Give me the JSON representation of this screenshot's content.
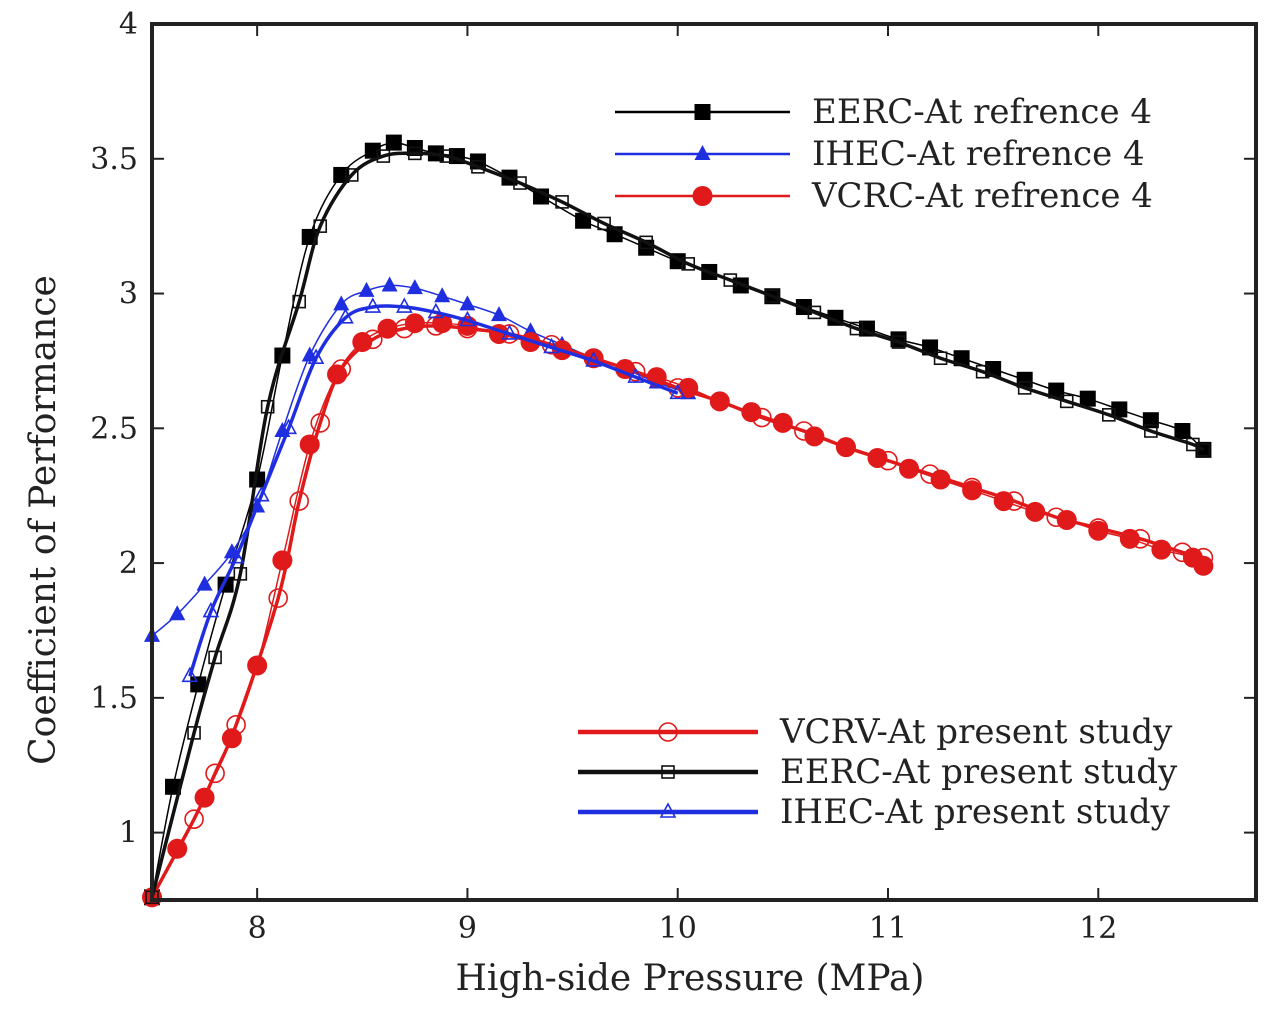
{
  "chart_data": {
    "type": "line",
    "xlabel": "High-side Pressure (MPa)",
    "ylabel": "Coefficient of Performance",
    "xlim": [
      7.5,
      12.75
    ],
    "ylim": [
      0.75,
      4
    ],
    "xticks": [
      "8",
      "9",
      "10",
      "11",
      "12"
    ],
    "yticks": [
      "1",
      "1.5",
      "2",
      "2.5",
      "3",
      "3.5",
      "4"
    ],
    "legend_top": {
      "placement": "top-right",
      "entries": [
        "EERC-At refrence 4",
        "IHEC-At refrence 4",
        "VCRC-At refrence 4"
      ]
    },
    "legend_bottom": {
      "placement": "bottom-right",
      "entries": [
        "VCRV-At present study",
        "EERC-At present study",
        "IHEC-At present study"
      ]
    },
    "series": [
      {
        "name": "EERC-At refrence 4",
        "color": "#000000",
        "marker": "square-filled",
        "x": [
          7.5,
          7.6,
          7.72,
          7.85,
          8.0,
          8.12,
          8.25,
          8.4,
          8.55,
          8.65,
          8.75,
          8.85,
          8.95,
          9.05,
          9.2,
          9.35,
          9.55,
          9.7,
          9.85,
          10.0,
          10.15,
          10.3,
          10.45,
          10.6,
          10.75,
          10.9,
          11.05,
          11.2,
          11.35,
          11.5,
          11.65,
          11.8,
          11.95,
          12.1,
          12.25,
          12.4,
          12.5
        ],
        "y": [
          0.76,
          1.17,
          1.55,
          1.92,
          2.31,
          2.77,
          3.21,
          3.44,
          3.53,
          3.56,
          3.54,
          3.52,
          3.51,
          3.49,
          3.43,
          3.36,
          3.27,
          3.22,
          3.17,
          3.12,
          3.08,
          3.03,
          2.99,
          2.95,
          2.91,
          2.87,
          2.83,
          2.8,
          2.76,
          2.72,
          2.68,
          2.64,
          2.61,
          2.57,
          2.53,
          2.49,
          2.42
        ]
      },
      {
        "name": "IHEC-At refrence 4",
        "color": "#1f2fe0",
        "marker": "triangle-filled",
        "x": [
          7.5,
          7.62,
          7.75,
          7.88,
          8.0,
          8.12,
          8.25,
          8.4,
          8.52,
          8.63,
          8.75,
          8.88,
          9.0,
          9.15,
          9.3,
          9.45,
          9.6,
          9.75,
          9.9,
          10.05
        ],
        "y": [
          1.73,
          1.81,
          1.92,
          2.04,
          2.21,
          2.49,
          2.77,
          2.96,
          3.01,
          3.03,
          3.02,
          2.99,
          2.96,
          2.92,
          2.86,
          2.81,
          2.76,
          2.72,
          2.67,
          2.63
        ]
      },
      {
        "name": "VCRC-At refrence 4",
        "color": "#e01a1a",
        "marker": "circle-filled",
        "x": [
          7.5,
          7.62,
          7.75,
          7.88,
          8.0,
          8.12,
          8.25,
          8.38,
          8.5,
          8.62,
          8.75,
          8.88,
          9.0,
          9.15,
          9.3,
          9.45,
          9.6,
          9.75,
          9.9,
          10.05,
          10.2,
          10.35,
          10.5,
          10.65,
          10.8,
          10.95,
          11.1,
          11.25,
          11.4,
          11.55,
          11.7,
          11.85,
          12.0,
          12.15,
          12.3,
          12.45,
          12.5
        ],
        "y": [
          0.76,
          0.94,
          1.13,
          1.35,
          1.62,
          2.01,
          2.44,
          2.7,
          2.82,
          2.87,
          2.89,
          2.89,
          2.88,
          2.85,
          2.82,
          2.79,
          2.76,
          2.72,
          2.69,
          2.65,
          2.6,
          2.56,
          2.52,
          2.47,
          2.43,
          2.39,
          2.35,
          2.31,
          2.27,
          2.23,
          2.19,
          2.16,
          2.12,
          2.09,
          2.05,
          2.02,
          1.99
        ]
      },
      {
        "name": "VCRV-At present study",
        "color": "#e01a1a",
        "marker": "circle-open",
        "x": [
          7.5,
          7.7,
          7.8,
          7.9,
          8.1,
          8.2,
          8.3,
          8.4,
          8.55,
          8.7,
          8.85,
          9.0,
          9.2,
          9.4,
          9.6,
          9.8,
          10.0,
          10.2,
          10.4,
          10.6,
          10.8,
          11.0,
          11.2,
          11.4,
          11.6,
          11.8,
          12.0,
          12.2,
          12.4,
          12.5
        ],
        "y": [
          0.76,
          1.05,
          1.22,
          1.4,
          1.87,
          2.23,
          2.52,
          2.72,
          2.83,
          2.87,
          2.88,
          2.87,
          2.85,
          2.81,
          2.76,
          2.71,
          2.65,
          2.6,
          2.54,
          2.49,
          2.43,
          2.38,
          2.33,
          2.28,
          2.23,
          2.17,
          2.13,
          2.09,
          2.04,
          2.02
        ]
      },
      {
        "name": "EERC-At present study",
        "color": "#111111",
        "marker": "square-open",
        "x": [
          7.5,
          7.7,
          7.8,
          7.92,
          8.05,
          8.2,
          8.3,
          8.45,
          8.6,
          8.75,
          8.9,
          9.05,
          9.25,
          9.45,
          9.65,
          9.85,
          10.05,
          10.25,
          10.45,
          10.65,
          10.85,
          11.05,
          11.25,
          11.45,
          11.65,
          11.85,
          12.05,
          12.25,
          12.45,
          12.5
        ],
        "y": [
          0.76,
          1.37,
          1.65,
          1.96,
          2.58,
          2.97,
          3.25,
          3.44,
          3.51,
          3.52,
          3.51,
          3.47,
          3.41,
          3.34,
          3.26,
          3.19,
          3.11,
          3.05,
          2.99,
          2.93,
          2.87,
          2.82,
          2.76,
          2.71,
          2.65,
          2.6,
          2.55,
          2.49,
          2.44,
          2.42
        ]
      },
      {
        "name": "IHEC-At present study",
        "color": "#1f2fe0",
        "marker": "triangle-open",
        "x": [
          7.68,
          7.78,
          7.9,
          8.02,
          8.15,
          8.28,
          8.42,
          8.55,
          8.7,
          8.85,
          9.0,
          9.2,
          9.4,
          9.6,
          9.8,
          10.0
        ],
        "y": [
          1.58,
          1.82,
          2.02,
          2.25,
          2.5,
          2.76,
          2.91,
          2.95,
          2.95,
          2.93,
          2.9,
          2.85,
          2.8,
          2.75,
          2.69,
          2.63
        ]
      }
    ]
  }
}
